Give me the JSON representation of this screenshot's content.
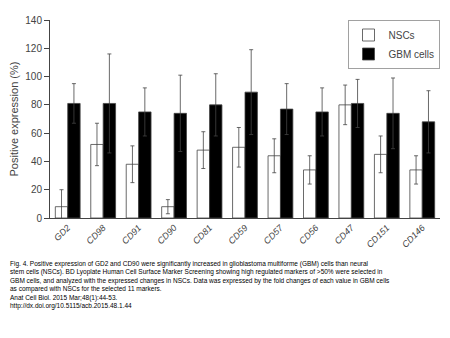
{
  "chart_data": {
    "type": "bar",
    "ylabel": "Positive expression (%)",
    "categories": [
      "GD2",
      "CD98",
      "CD91",
      "CD90",
      "CD81",
      "CD59",
      "CD57",
      "CD56",
      "CD47",
      "CD151",
      "CD146"
    ],
    "series": [
      {
        "name": "NSCs",
        "color": "white",
        "values": [
          8,
          52,
          38,
          8,
          48,
          50,
          44,
          34,
          80,
          45,
          34
        ],
        "errors": [
          12,
          15,
          13,
          5,
          13,
          14,
          12,
          10,
          14,
          13,
          10
        ]
      },
      {
        "name": "GBM cells",
        "color": "black",
        "values": [
          81,
          81,
          75,
          74,
          80,
          89,
          77,
          75,
          81,
          74,
          68
        ],
        "errors": [
          14,
          35,
          17,
          27,
          22,
          30,
          18,
          17,
          17,
          25,
          22
        ]
      }
    ],
    "ylim": [
      0,
      140
    ],
    "yticks": [
      0,
      20,
      40,
      60,
      80,
      100,
      120,
      140
    ],
    "grid": false,
    "legend": "upper right",
    "annotations": [
      "Fig. 4. Positive expression of GD2 and CD90 were significantly increased in glioblastoma multiforme (GBM) cells than neural",
      "stem cells (NSCs). BD Lyoplate Human Cell Surface Marker Screening showing high regulated markers of >50% were selected in",
      "GBM cells, and analyzed with the expressed changes in NSCs. Data was expressed by the fold changes of each value in GBM cells",
      "as compared with NSCs for the selected 11 markers.",
      "Anat Cell Biol. 2015 Mar;48(1):44-53.",
      "http://dx.doi.org/10.5115/acb.2015.48.1.44"
    ]
  }
}
